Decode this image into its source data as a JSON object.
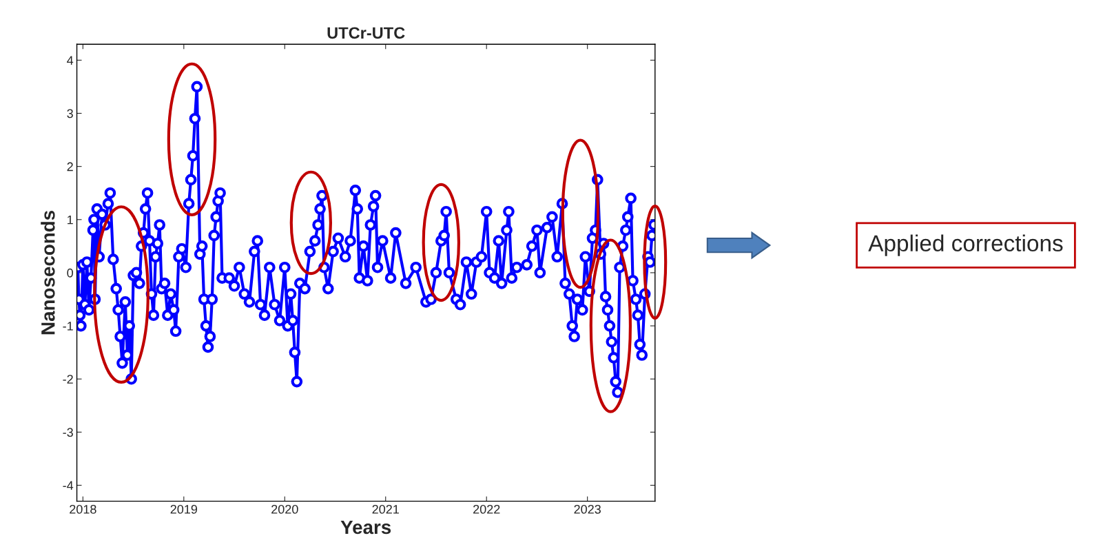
{
  "chart_data": {
    "type": "line",
    "title": "UTCr-UTC",
    "xlabel": "Years",
    "ylabel": "Nanoseconds",
    "xlim": [
      2017.94,
      2023.67
    ],
    "xticks": [
      2018,
      2019,
      2020,
      2021,
      2022,
      2023
    ],
    "ylim": [
      -4.3,
      4.3
    ],
    "yticks": [
      -4,
      -3,
      -2,
      -1,
      0,
      1,
      2,
      3,
      4
    ],
    "marker": "circle",
    "line_style": "solid",
    "grid": false,
    "annotations": [
      "Applied corrections"
    ],
    "series": [
      {
        "color": "#0000ff",
        "x": [
          2017.95,
          2017.96,
          2017.97,
          2017.98,
          2018.0,
          2018.02,
          2018.04,
          2018.06,
          2018.08,
          2018.1,
          2018.11,
          2018.12,
          2018.14,
          2018.16,
          2018.19,
          2018.22,
          2018.25,
          2018.27,
          2018.3,
          2018.33,
          2018.35,
          2018.37,
          2018.39,
          2018.42,
          2018.44,
          2018.46,
          2018.48,
          2018.5,
          2018.53,
          2018.56,
          2018.58,
          2018.6,
          2018.62,
          2018.64,
          2018.66,
          2018.68,
          2018.7,
          2018.72,
          2018.74,
          2018.76,
          2018.78,
          2018.81,
          2018.84,
          2018.87,
          2018.9,
          2018.92,
          2018.95,
          2018.98,
          2019.02,
          2019.05,
          2019.07,
          2019.09,
          2019.11,
          2019.13,
          2019.16,
          2019.18,
          2019.2,
          2019.22,
          2019.24,
          2019.26,
          2019.28,
          2019.3,
          2019.32,
          2019.34,
          2019.36,
          2019.38,
          2019.45,
          2019.5,
          2019.55,
          2019.6,
          2019.65,
          2019.7,
          2019.73,
          2019.76,
          2019.8,
          2019.85,
          2019.9,
          2019.95,
          2020.0,
          2020.03,
          2020.06,
          2020.08,
          2020.1,
          2020.12,
          2020.15,
          2020.2,
          2020.25,
          2020.3,
          2020.33,
          2020.35,
          2020.37,
          2020.39,
          2020.43,
          2020.48,
          2020.53,
          2020.6,
          2020.65,
          2020.7,
          2020.72,
          2020.74,
          2020.78,
          2020.82,
          2020.85,
          2020.88,
          2020.9,
          2020.92,
          2020.97,
          2021.05,
          2021.1,
          2021.2,
          2021.3,
          2021.4,
          2021.45,
          2021.5,
          2021.55,
          2021.58,
          2021.6,
          2021.63,
          2021.7,
          2021.74,
          2021.8,
          2021.85,
          2021.9,
          2021.95,
          2022.0,
          2022.03,
          2022.08,
          2022.12,
          2022.15,
          2022.2,
          2022.22,
          2022.25,
          2022.3,
          2022.4,
          2022.45,
          2022.5,
          2022.53,
          2022.6,
          2022.65,
          2022.7,
          2022.75,
          2022.78,
          2022.82,
          2022.85,
          2022.87,
          2022.9,
          2022.95,
          2022.98,
          2023.02,
          2023.05,
          2023.08,
          2023.1,
          2023.13,
          2023.16,
          2023.18,
          2023.2,
          2023.22,
          2023.24,
          2023.26,
          2023.28,
          2023.3,
          2023.32,
          2023.35,
          2023.38,
          2023.4,
          2023.43,
          2023.45,
          2023.48,
          2023.5,
          2023.52,
          2023.54,
          2023.57,
          2023.6,
          2023.62,
          2023.64,
          2023.66
        ],
        "values": [
          0.1,
          -0.5,
          -0.8,
          -1.0,
          0.15,
          -0.6,
          0.2,
          -0.7,
          -0.1,
          0.8,
          1.0,
          -0.5,
          1.2,
          0.3,
          1.1,
          0.9,
          1.3,
          1.5,
          0.25,
          -0.3,
          -0.7,
          -1.2,
          -1.7,
          -0.55,
          -1.55,
          -1.0,
          -2.0,
          -0.05,
          0.0,
          -0.2,
          0.5,
          0.75,
          1.2,
          1.5,
          0.6,
          -0.4,
          -0.8,
          0.3,
          0.55,
          0.9,
          -0.3,
          -0.2,
          -0.8,
          -0.4,
          -0.7,
          -1.1,
          0.3,
          0.45,
          0.1,
          1.3,
          1.75,
          2.2,
          2.9,
          3.5,
          0.35,
          0.5,
          -0.5,
          -1.0,
          -1.4,
          -1.2,
          -0.5,
          0.7,
          1.05,
          1.35,
          1.5,
          -0.1,
          -0.1,
          -0.25,
          0.1,
          -0.4,
          -0.55,
          0.4,
          0.6,
          -0.6,
          -0.8,
          0.1,
          -0.6,
          -0.9,
          0.1,
          -1.0,
          -0.4,
          -0.9,
          -1.5,
          -2.05,
          -0.2,
          -0.3,
          0.4,
          0.6,
          0.9,
          1.2,
          1.45,
          0.1,
          -0.3,
          0.4,
          0.65,
          0.3,
          0.6,
          1.55,
          1.2,
          -0.1,
          0.5,
          -0.15,
          0.9,
          1.25,
          1.45,
          0.1,
          0.6,
          -0.1,
          0.75,
          -0.2,
          0.1,
          -0.55,
          -0.5,
          0.0,
          0.6,
          0.7,
          1.15,
          0.0,
          -0.5,
          -0.6,
          0.2,
          -0.4,
          0.2,
          0.3,
          1.15,
          0.0,
          -0.1,
          0.6,
          -0.2,
          0.8,
          1.15,
          -0.1,
          0.1,
          0.15,
          0.5,
          0.8,
          0.0,
          0.85,
          1.05,
          0.3,
          1.3,
          -0.2,
          -0.4,
          -1.0,
          -1.2,
          -0.5,
          -0.7,
          0.3,
          -0.35,
          0.65,
          0.8,
          1.75,
          0.35,
          0.55,
          -0.45,
          -0.7,
          -1.0,
          -1.3,
          -1.6,
          -2.05,
          -2.25,
          0.1,
          0.5,
          0.8,
          1.05,
          1.4,
          -0.15,
          -0.5,
          -0.8,
          -1.35,
          -1.55,
          -0.4,
          0.3,
          0.2,
          0.7,
          0.9
        ]
      }
    ]
  }
}
